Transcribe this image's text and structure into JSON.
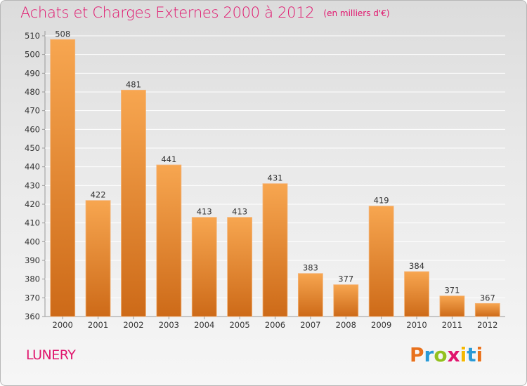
{
  "header": {
    "title": "Achats et Charges Externes 2000 à 2012",
    "subtitle": "(en milliers d'€)"
  },
  "footer": {
    "commune": "LUNERY",
    "logo": {
      "letters": [
        "P",
        "r",
        "o",
        "x",
        "i",
        "t",
        "i"
      ],
      "colors": [
        "#e8711c",
        "#2a9ad6",
        "#93c01f",
        "#e0156d",
        "#f5b800",
        "#2a9ad6",
        "#e8711c"
      ]
    }
  },
  "colors": {
    "bar_light": "#f7a650",
    "bar_dark": "#cd6a18",
    "title": "#e0156d",
    "grid": "#ffffff"
  },
  "chart_data": {
    "type": "bar",
    "title": "Achats et Charges Externes 2000 à 2012",
    "subtitle": "(en milliers d'€)",
    "categories": [
      "2000",
      "2001",
      "2002",
      "2003",
      "2004",
      "2005",
      "2006",
      "2007",
      "2008",
      "2009",
      "2010",
      "2011",
      "2012"
    ],
    "values": [
      508,
      422,
      481,
      441,
      413,
      413,
      431,
      383,
      377,
      419,
      384,
      371,
      367
    ],
    "data_labels": [
      "508",
      "422",
      "481",
      "441",
      "413",
      "413",
      "431",
      "383",
      "377",
      "419",
      "384",
      "371",
      "367"
    ],
    "yticks": [
      360,
      370,
      380,
      390,
      400,
      410,
      420,
      430,
      440,
      450,
      460,
      470,
      480,
      490,
      500,
      510
    ],
    "ylim": [
      360,
      510
    ],
    "xlabel": "",
    "ylabel": "",
    "grid": true,
    "legend": "none"
  }
}
